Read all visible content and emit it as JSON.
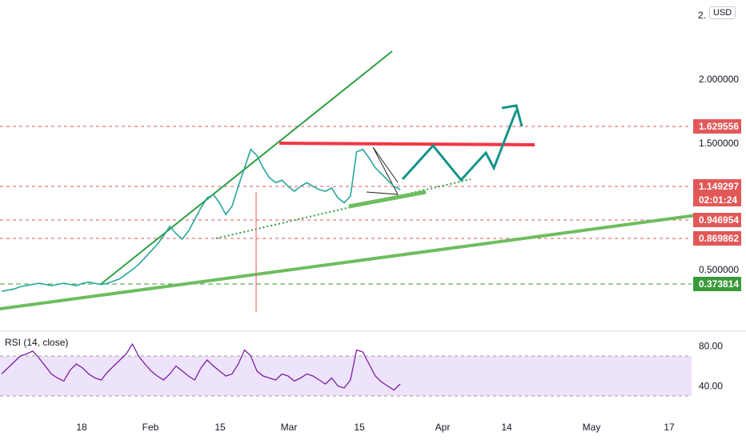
{
  "currency": "USD",
  "price_scale_top_label": "2.",
  "rsi_label": "RSI (14, close)",
  "colors": {
    "candle": "#26a69a",
    "candle_down": "#ef5350",
    "resistance": "#f23645",
    "channel": "#2e9e42",
    "support": "#6ebd5f",
    "projection": "#14948a",
    "rsi": "#7b1fa2",
    "rsi_band": "#ede3fa",
    "level_red": "#e25858",
    "level_green": "#3c9a3c"
  },
  "chart_data": {
    "type": "line",
    "price_axis_ticks": [
      "2.000000",
      "1.500000",
      "0.500000"
    ],
    "price_levels": [
      {
        "value": 1.629556,
        "label": "1.629556",
        "color": "red"
      },
      {
        "value": 1.149297,
        "label": "1.149297",
        "sublabel": "02:01:24",
        "color": "red"
      },
      {
        "value": 0.946954,
        "label": "0.946954",
        "color": "red"
      },
      {
        "value": 0.869862,
        "label": "0.869862",
        "color": "red"
      },
      {
        "value": 0.373814,
        "label": "0.373814",
        "color": "green"
      }
    ],
    "x_ticks": [
      "18",
      "Feb",
      "15",
      "Mar",
      "15",
      "Apr",
      "14",
      "May",
      "17"
    ],
    "price_series": [
      0.31,
      0.32,
      0.33,
      0.35,
      0.36,
      0.37,
      0.38,
      0.37,
      0.36,
      0.37,
      0.38,
      0.37,
      0.36,
      0.38,
      0.39,
      0.38,
      0.37,
      0.38,
      0.4,
      0.42,
      0.46,
      0.5,
      0.56,
      0.64,
      0.72,
      0.8,
      0.88,
      0.92,
      0.89,
      0.86,
      0.9,
      0.95,
      1.02,
      1.08,
      1.1,
      1.05,
      0.98,
      1.03,
      1.15,
      1.3,
      1.45,
      1.4,
      1.3,
      1.22,
      1.18,
      1.2,
      1.15,
      1.12,
      1.15,
      1.18,
      1.15,
      1.13,
      1.12,
      1.14,
      1.08,
      1.05,
      1.09,
      1.43,
      1.45,
      1.38,
      1.3,
      1.25,
      1.2,
      1.15,
      1.13
    ],
    "rsi": {
      "name": "RSI (14, close)",
      "ticks": [
        "80.00",
        "40.00"
      ],
      "band": [
        30,
        70
      ],
      "values": [
        52,
        58,
        64,
        70,
        72,
        75,
        68,
        60,
        52,
        48,
        45,
        56,
        62,
        58,
        52,
        48,
        46,
        54,
        60,
        66,
        72,
        82,
        70,
        62,
        55,
        50,
        46,
        52,
        60,
        55,
        50,
        46,
        58,
        66,
        60,
        55,
        50,
        52,
        62,
        76,
        70,
        55,
        50,
        48,
        46,
        52,
        50,
        45,
        48,
        52,
        50,
        46,
        42,
        48,
        40,
        38,
        46,
        76,
        74,
        62,
        50,
        44,
        40,
        36,
        42
      ]
    },
    "annotations": [
      "rising channel line",
      "resistance line",
      "support trendline",
      "dotted trendline",
      "wedge",
      "projected zigzag path up"
    ]
  }
}
